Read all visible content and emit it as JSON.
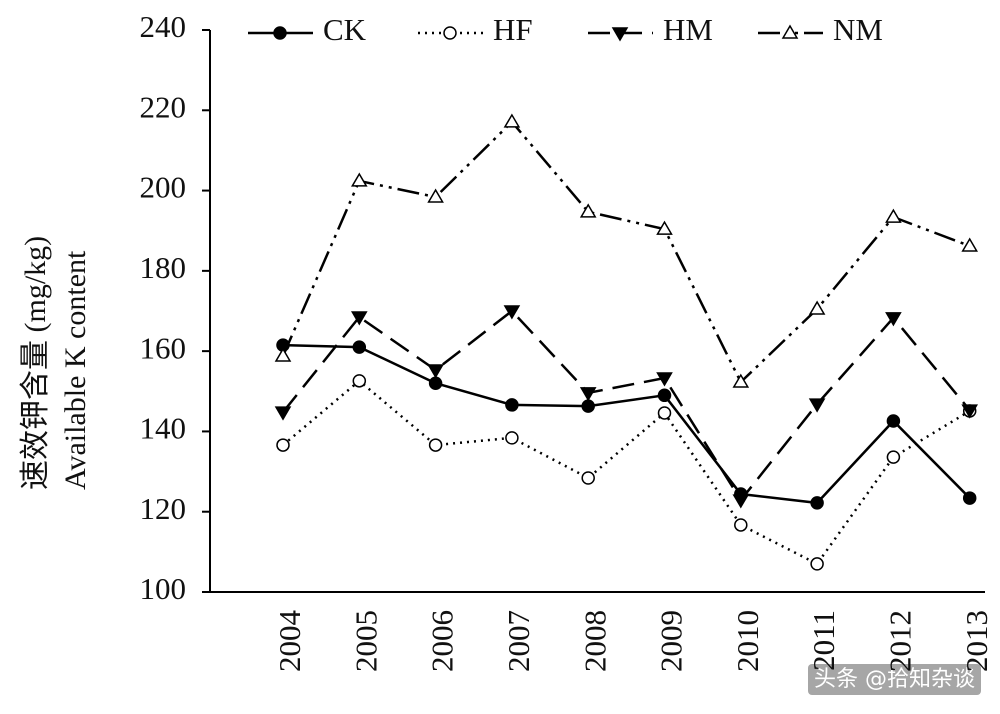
{
  "chart_data": {
    "type": "line",
    "y_label_lines": [
      "速效钾含量 (mg/kg)",
      "Available K content"
    ],
    "categories": [
      "2004",
      "2005",
      "2006",
      "2007",
      "2008",
      "2009",
      "2010",
      "2011",
      "2012",
      "2013"
    ],
    "series": [
      {
        "name": "CK",
        "color": "#000000",
        "values": [
          161.5,
          161,
          152,
          146.6,
          146.3,
          149,
          124.4,
          122.2,
          142.6,
          123.4
        ]
      },
      {
        "name": "HF",
        "color": "#000000",
        "values": [
          136.6,
          152.6,
          136.6,
          138.4,
          128.4,
          144.6,
          116.7,
          107,
          133.6,
          145.1
        ]
      },
      {
        "name": "HM",
        "color": "#000000",
        "values": [
          144.8,
          168.5,
          155.3,
          170,
          149.6,
          153.3,
          122.9,
          146.8,
          168.3,
          145.3
        ]
      },
      {
        "name": "NM",
        "color": "#000000",
        "values": [
          158.8,
          202.4,
          198.4,
          217.1,
          194.7,
          190.4,
          152.3,
          170.5,
          193.4,
          186.2
        ]
      }
    ],
    "ylim": [
      100,
      240
    ],
    "yticks": [
      100,
      120,
      140,
      160,
      180,
      200,
      220,
      240
    ],
    "watermark": "头条 @拾知杂谈"
  }
}
